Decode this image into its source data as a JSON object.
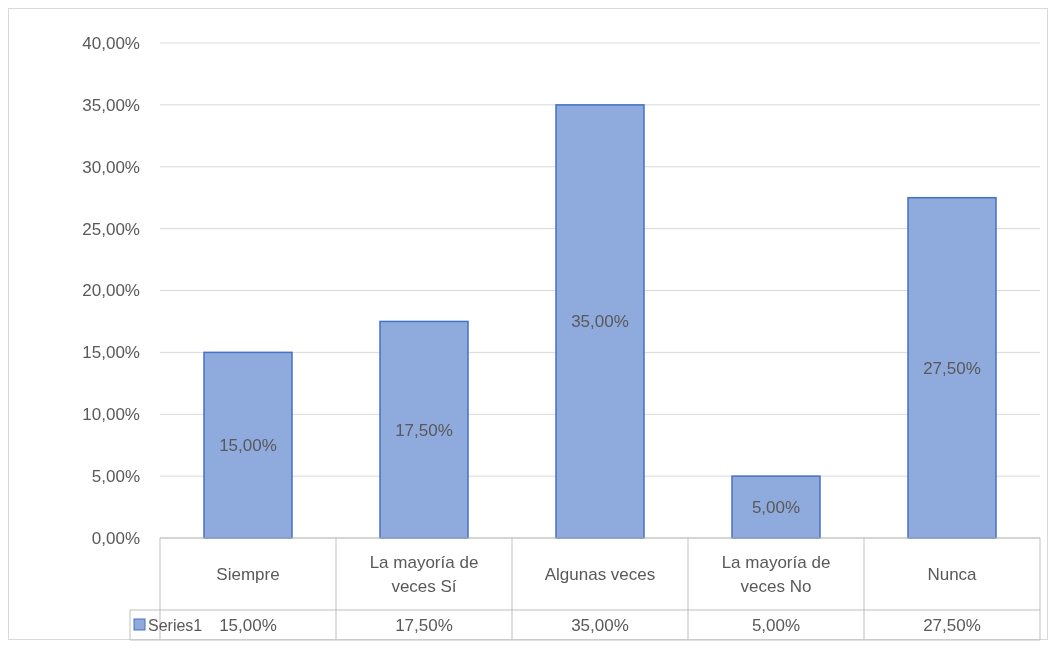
{
  "chart_data": {
    "type": "bar",
    "categories": [
      "Siempre",
      "La mayoría de veces Sí",
      "Algunas veces",
      "La mayoría de veces No",
      "Nunca"
    ],
    "series": [
      {
        "name": "Series1",
        "color": "#8faadc",
        "values": [
          15,
          17.5,
          35,
          5,
          27.5
        ],
        "value_labels": [
          "15,00%",
          "17,50%",
          "35,00%",
          "5,00%",
          "27,50%"
        ]
      }
    ],
    "ylim": [
      0,
      40
    ],
    "yticks": [
      {
        "value": 0,
        "label": "0,00%"
      },
      {
        "value": 5,
        "label": "5,00%"
      },
      {
        "value": 10,
        "label": "10,00%"
      },
      {
        "value": 15,
        "label": "15,00%"
      },
      {
        "value": 20,
        "label": "20,00%"
      },
      {
        "value": 25,
        "label": "25,00%"
      },
      {
        "value": 30,
        "label": "30,00%"
      },
      {
        "value": 35,
        "label": "35,00%"
      },
      {
        "value": 40,
        "label": "40,00%"
      }
    ],
    "grid": "y",
    "legend": "bottom left"
  }
}
